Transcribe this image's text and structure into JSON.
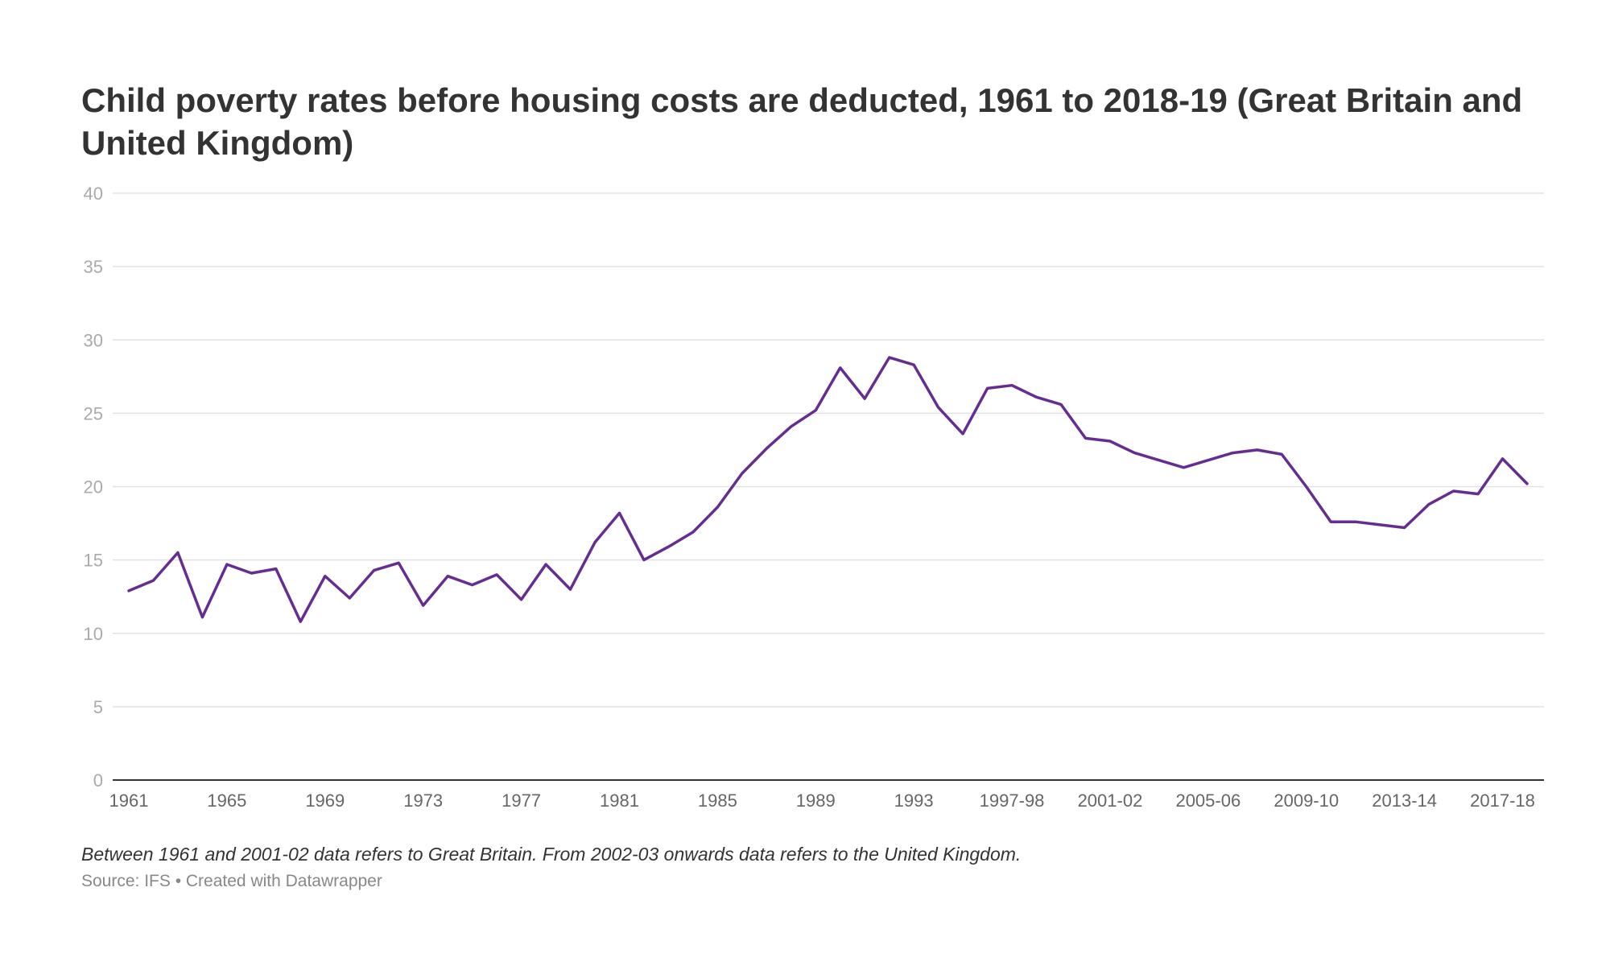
{
  "chart_data": {
    "type": "line",
    "title": "Child poverty rates before housing costs are deducted, 1961 to 2018-19 (Great Britain and United Kingdom)",
    "note": "Between 1961 and 2001-02 data refers to Great Britain. From 2002-03 onwards data refers to the United Kingdom.",
    "source": "Source: IFS • Created with Datawrapper",
    "xlabel": "",
    "ylabel": "",
    "ylim": [
      0,
      40
    ],
    "y_ticks": [
      0,
      5,
      10,
      15,
      20,
      25,
      30,
      35,
      40
    ],
    "x_tick_labels": [
      "1961",
      "1965",
      "1969",
      "1973",
      "1977",
      "1981",
      "1985",
      "1989",
      "1993",
      "1997-98",
      "2001-02",
      "2005-06",
      "2009-10",
      "2013-14",
      "2017-18"
    ],
    "grid": true,
    "legend": "none",
    "line_color": "#662d91",
    "x": [
      "1961",
      "1962",
      "1963",
      "1964",
      "1965",
      "1966",
      "1967",
      "1968",
      "1969",
      "1970",
      "1971",
      "1972",
      "1973",
      "1974",
      "1975",
      "1976",
      "1977",
      "1978",
      "1979",
      "1980",
      "1981",
      "1982",
      "1983",
      "1984",
      "1985",
      "1986",
      "1987",
      "1988",
      "1989",
      "1990",
      "1991",
      "1992",
      "1993",
      "1994-95",
      "1995-96",
      "1996-97",
      "1997-98",
      "1998-99",
      "1999-00",
      "2000-01",
      "2001-02",
      "2002-03",
      "2003-04",
      "2004-05",
      "2005-06",
      "2006-07",
      "2007-08",
      "2008-09",
      "2009-10",
      "2010-11",
      "2011-12",
      "2012-13",
      "2013-14",
      "2014-15",
      "2015-16",
      "2016-17",
      "2017-18",
      "2018-19"
    ],
    "series": [
      {
        "values": [
          12.9,
          13.6,
          15.5,
          11.1,
          14.7,
          14.1,
          14.4,
          10.8,
          13.9,
          12.4,
          14.3,
          14.8,
          11.9,
          13.9,
          13.3,
          14.0,
          12.3,
          14.7,
          13.0,
          16.2,
          18.2,
          15.0,
          15.9,
          16.9,
          18.6,
          20.9,
          22.6,
          24.1,
          25.2,
          28.1,
          26.0,
          28.8,
          28.3,
          25.4,
          23.6,
          26.7,
          26.9,
          26.1,
          25.6,
          23.3,
          23.1,
          22.3,
          21.8,
          21.3,
          21.8,
          22.3,
          22.5,
          22.2,
          20.0,
          17.6,
          17.6,
          17.4,
          17.2,
          18.8,
          19.7,
          19.5,
          21.9,
          20.2
        ]
      }
    ]
  }
}
